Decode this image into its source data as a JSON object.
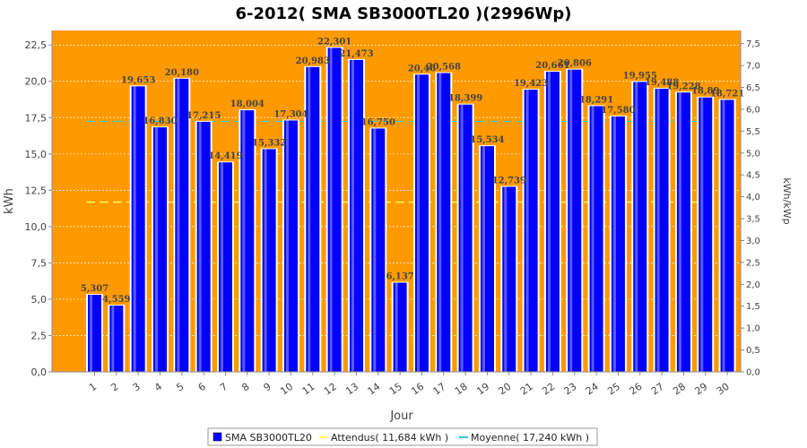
{
  "chart_data": {
    "type": "bar",
    "title": "6-2012( SMA SB3000TL20 )(2996Wp)",
    "xlabel": "Jour",
    "ylabel": "kWh",
    "ylabel_right": "kWh/kWp",
    "categories": [
      "1",
      "2",
      "3",
      "4",
      "5",
      "6",
      "7",
      "8",
      "9",
      "10",
      "11",
      "12",
      "13",
      "14",
      "15",
      "16",
      "17",
      "18",
      "19",
      "20",
      "21",
      "22",
      "23",
      "24",
      "25",
      "26",
      "27",
      "28",
      "29",
      "30"
    ],
    "value_labels": [
      "5,307",
      "4,559",
      "19,653",
      "16,830",
      "20,180",
      "17,215",
      "14,419",
      "18,004",
      "15,332",
      "17,304",
      "20,983",
      "22,301",
      "21,473",
      "16,750",
      "6,137",
      "20,46",
      "20,568",
      "18,399",
      "15,534",
      "12,739",
      "19,423",
      "20,661",
      "20,806",
      "18,291",
      "17,580",
      "19,955",
      "19,488",
      "19,228",
      "18,89",
      "18,721"
    ],
    "series": [
      {
        "name": "SMA SB3000TL20",
        "color": "#0000ff",
        "values": [
          5.307,
          4.559,
          19.653,
          16.83,
          20.18,
          17.215,
          14.419,
          18.004,
          15.332,
          17.304,
          20.983,
          22.301,
          21.473,
          16.75,
          6.137,
          20.46,
          20.568,
          18.399,
          15.534,
          12.739,
          19.423,
          20.661,
          20.806,
          18.291,
          17.58,
          19.955,
          19.488,
          19.228,
          18.89,
          18.721
        ]
      }
    ],
    "reference_lines": [
      {
        "name": "Attendus( 11,684 kWh )",
        "value": 11.684,
        "color": "#ffff66"
      },
      {
        "name": "Moyenne( 17,240 kWh )",
        "value": 17.24,
        "color": "#33cccc"
      }
    ],
    "ylim": [
      0,
      23.5
    ],
    "yticks": [
      "0,0",
      "2,5",
      "5,0",
      "7,5",
      "10,0",
      "12,5",
      "15,0",
      "17,5",
      "20,0",
      "22,5"
    ],
    "ylim_right": [
      0,
      7.8
    ],
    "yticks_right": [
      "0,0",
      "0,5",
      "1,0",
      "1,5",
      "2,0",
      "2,5",
      "3,0",
      "3,5",
      "4,0",
      "4,5",
      "5,0",
      "5,5",
      "6,0",
      "6,5",
      "7,0",
      "7,5"
    ],
    "plot_background": "#ff9900",
    "grid": true,
    "legend_position": "bottom"
  }
}
